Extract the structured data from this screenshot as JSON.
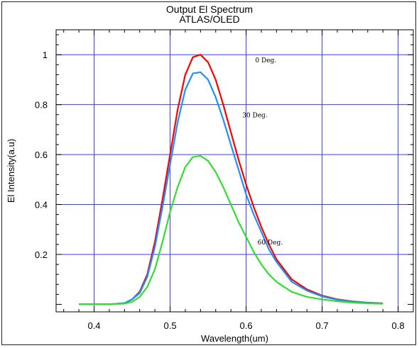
{
  "chart_data": {
    "type": "line",
    "title": "Output El Spectrum",
    "subtitle": "ATLAS/OLED",
    "xlabel": "Wavelength(um)",
    "ylabel": "El Intensity(a.u)",
    "xlim": [
      0.35,
      0.82
    ],
    "ylim": [
      -0.03,
      1.1
    ],
    "xticks": [
      0.4,
      0.5,
      0.6,
      0.7,
      0.8
    ],
    "xtick_labels": [
      "0.4",
      "0.5",
      "0.6",
      "0.7",
      "0.8"
    ],
    "yticks": [
      0.2,
      0.4,
      0.6,
      0.8,
      1.0
    ],
    "ytick_labels": [
      "0.2",
      "0.4",
      "0.6",
      "0.8",
      "1"
    ],
    "grid": true,
    "series": [
      {
        "name": "0 Deg.",
        "color": "#ff0000",
        "x": [
          0.38,
          0.4,
          0.42,
          0.44,
          0.45,
          0.46,
          0.47,
          0.48,
          0.49,
          0.5,
          0.51,
          0.52,
          0.53,
          0.54,
          0.55,
          0.56,
          0.57,
          0.58,
          0.59,
          0.6,
          0.61,
          0.62,
          0.63,
          0.64,
          0.65,
          0.66,
          0.68,
          0.7,
          0.72,
          0.74,
          0.76,
          0.78
        ],
        "y": [
          0.0,
          0.0,
          0.0,
          0.005,
          0.02,
          0.05,
          0.12,
          0.25,
          0.42,
          0.6,
          0.78,
          0.92,
          0.99,
          1.0,
          0.97,
          0.9,
          0.8,
          0.69,
          0.58,
          0.48,
          0.39,
          0.31,
          0.24,
          0.18,
          0.14,
          0.1,
          0.06,
          0.035,
          0.02,
          0.012,
          0.007,
          0.004
        ]
      },
      {
        "name": "30 Deg.",
        "color": "#1e90ff",
        "x": [
          0.38,
          0.4,
          0.42,
          0.44,
          0.45,
          0.46,
          0.47,
          0.48,
          0.49,
          0.5,
          0.51,
          0.52,
          0.53,
          0.54,
          0.55,
          0.56,
          0.57,
          0.58,
          0.59,
          0.6,
          0.61,
          0.62,
          0.63,
          0.64,
          0.65,
          0.66,
          0.68,
          0.7,
          0.72,
          0.74,
          0.76,
          0.78
        ],
        "y": [
          0.0,
          0.0,
          0.0,
          0.005,
          0.02,
          0.045,
          0.11,
          0.23,
          0.39,
          0.56,
          0.73,
          0.86,
          0.925,
          0.93,
          0.9,
          0.83,
          0.74,
          0.64,
          0.54,
          0.44,
          0.36,
          0.29,
          0.22,
          0.17,
          0.13,
          0.09,
          0.055,
          0.032,
          0.018,
          0.011,
          0.006,
          0.003
        ]
      },
      {
        "name": "60 Deg.",
        "color": "#33dd33",
        "x": [
          0.38,
          0.4,
          0.42,
          0.44,
          0.45,
          0.46,
          0.47,
          0.48,
          0.49,
          0.5,
          0.51,
          0.52,
          0.53,
          0.54,
          0.55,
          0.56,
          0.57,
          0.58,
          0.59,
          0.6,
          0.61,
          0.62,
          0.63,
          0.64,
          0.65,
          0.66,
          0.68,
          0.7,
          0.72,
          0.74,
          0.76,
          0.78
        ],
        "y": [
          0.0,
          0.0,
          0.0,
          0.003,
          0.01,
          0.03,
          0.07,
          0.14,
          0.25,
          0.37,
          0.47,
          0.55,
          0.59,
          0.595,
          0.575,
          0.53,
          0.47,
          0.4,
          0.33,
          0.27,
          0.21,
          0.16,
          0.12,
          0.09,
          0.07,
          0.05,
          0.03,
          0.02,
          0.012,
          0.007,
          0.004,
          0.002
        ]
      }
    ],
    "annotations": [
      {
        "text": "0 Deg.",
        "x": 0.612,
        "y": 0.97
      },
      {
        "text": "30 Deg.",
        "x": 0.595,
        "y": 0.75
      },
      {
        "text": "60 Deg.",
        "x": 0.615,
        "y": 0.24
      }
    ]
  }
}
